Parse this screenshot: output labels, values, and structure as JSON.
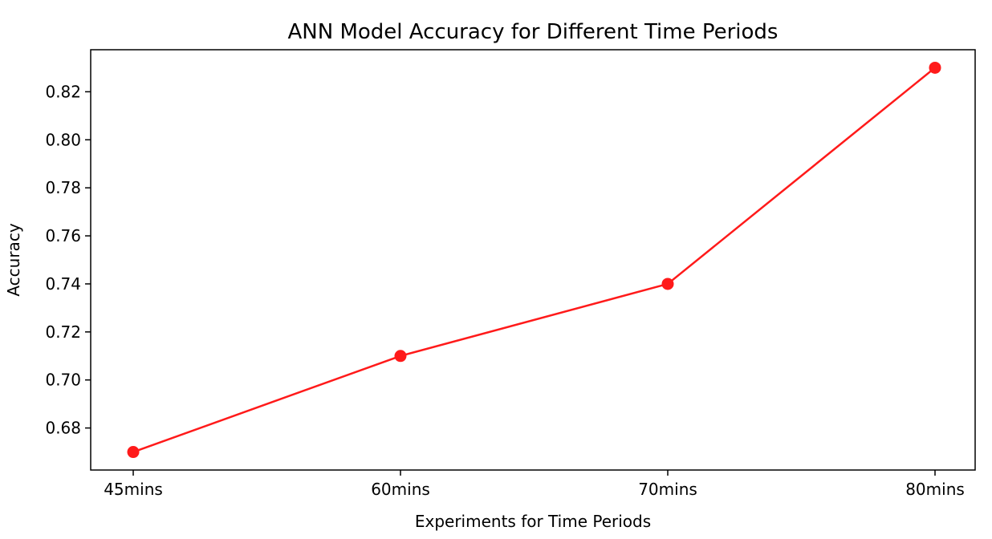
{
  "chart_data": {
    "type": "line",
    "title": "ANN Model Accuracy for Different Time Periods",
    "xlabel": "Experiments for Time Periods",
    "ylabel": "Accuracy",
    "categories": [
      "45mins",
      "60mins",
      "70mins",
      "80mins"
    ],
    "series": [
      {
        "values": [
          0.67,
          0.71,
          0.74,
          0.83
        ],
        "color": "#ff1a1a",
        "marker": "circle"
      }
    ],
    "yticks": [
      0.68,
      0.7,
      0.72,
      0.74,
      0.76,
      0.78,
      0.8,
      0.82
    ],
    "ytick_labels": [
      "0.68",
      "0.70",
      "0.72",
      "0.74",
      "0.76",
      "0.78",
      "0.80",
      "0.82"
    ],
    "ylim": [
      0.6625,
      0.8375
    ],
    "grid": false,
    "legend": "none"
  }
}
